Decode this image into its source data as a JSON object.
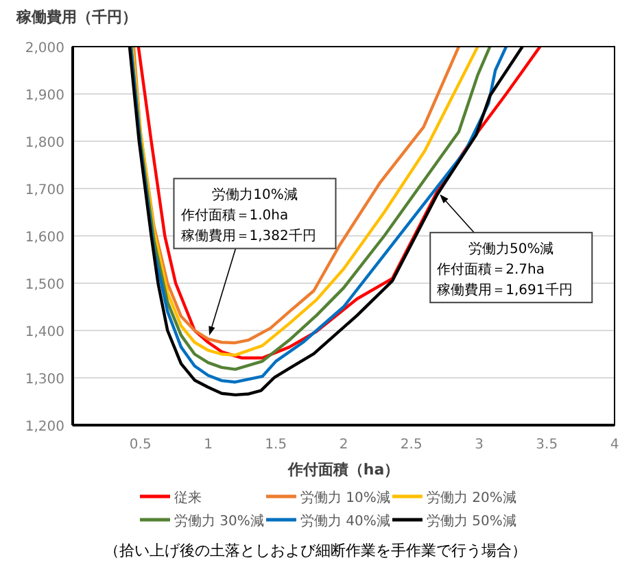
{
  "chart_data": {
    "type": "line",
    "xlabel": "作付面積（ha）",
    "ylabel": "稼働費用（千円）",
    "xlim": [
      0,
      4
    ],
    "ylim": [
      1200,
      2000
    ],
    "xticks": [
      0.5,
      1,
      1.5,
      2,
      2.5,
      3,
      3.5,
      4
    ],
    "yticks": [
      {
        "value": 1200,
        "label": "1,200"
      },
      {
        "value": 1300,
        "label": "1,300"
      },
      {
        "value": 1400,
        "label": "1,400"
      },
      {
        "value": 1500,
        "label": "1,500"
      },
      {
        "value": 1600,
        "label": "1,600"
      },
      {
        "value": 1700,
        "label": "1,700"
      },
      {
        "value": 1800,
        "label": "1,800"
      },
      {
        "value": 1900,
        "label": "1,900"
      },
      {
        "value": 2000,
        "label": "2,000"
      }
    ],
    "grid": "y",
    "legend": "bottom",
    "series": [
      {
        "name": "従来",
        "color": "#ff0000",
        "x": [
          0.485,
          0.58,
          0.68,
          0.76,
          0.9,
          1.0,
          1.1,
          1.25,
          1.4,
          1.6,
          1.8,
          2.1,
          2.36,
          2.69,
          2.94,
          3.2,
          3.45
        ],
        "values": [
          2000,
          1800,
          1600,
          1500,
          1400,
          1375,
          1355,
          1342,
          1342,
          1365,
          1398,
          1467,
          1510,
          1693,
          1800,
          1900,
          2000
        ]
      },
      {
        "name": "労働力 10%減",
        "color": "#ed7d31",
        "x": [
          0.45,
          0.5,
          0.6,
          0.7,
          0.8,
          0.9,
          1.0,
          1.1,
          1.2,
          1.3,
          1.46,
          1.6,
          1.78,
          1.97,
          2.27,
          2.59,
          2.85
        ],
        "values": [
          2000,
          1820,
          1620,
          1500,
          1430,
          1400,
          1382,
          1375,
          1374,
          1380,
          1405,
          1440,
          1484,
          1580,
          1713,
          1830,
          2000
        ]
      },
      {
        "name": "労働力 20%減",
        "color": "#ffc000",
        "x": [
          0.44,
          0.5,
          0.6,
          0.7,
          0.8,
          0.9,
          1.0,
          1.1,
          1.2,
          1.4,
          1.6,
          1.8,
          2.0,
          2.3,
          2.6,
          2.99
        ],
        "values": [
          2000,
          1820,
          1610,
          1480,
          1410,
          1375,
          1358,
          1350,
          1348,
          1368,
          1415,
          1465,
          1530,
          1650,
          1780,
          2000
        ]
      },
      {
        "name": "労働力 30%減",
        "color": "#548235",
        "x": [
          0.43,
          0.5,
          0.6,
          0.7,
          0.8,
          0.9,
          1.0,
          1.1,
          1.2,
          1.4,
          1.6,
          1.8,
          2.0,
          2.3,
          2.6,
          2.85,
          2.99,
          3.08
        ],
        "values": [
          2000,
          1800,
          1590,
          1460,
          1390,
          1350,
          1332,
          1322,
          1318,
          1335,
          1380,
          1432,
          1490,
          1600,
          1720,
          1820,
          1940,
          2000
        ]
      },
      {
        "name": "労働力 40%減",
        "color": "#0070c0",
        "x": [
          0.43,
          0.5,
          0.6,
          0.7,
          0.8,
          0.9,
          1.0,
          1.1,
          1.2,
          1.4,
          1.5,
          1.7,
          2.0,
          2.3,
          2.6,
          2.9,
          3.07,
          3.12,
          3.2
        ],
        "values": [
          2000,
          1790,
          1570,
          1440,
          1365,
          1325,
          1305,
          1294,
          1291,
          1303,
          1335,
          1375,
          1450,
          1560,
          1670,
          1780,
          1880,
          1950,
          2000
        ]
      },
      {
        "name": "労働力 50%減",
        "color": "#000000",
        "x": [
          0.42,
          0.49,
          0.58,
          0.63,
          0.7,
          0.8,
          0.9,
          1.0,
          1.1,
          1.2,
          1.3,
          1.39,
          1.49,
          1.6,
          1.78,
          2.1,
          2.36,
          2.69,
          2.98,
          3.08,
          3.32
        ],
        "values": [
          2000,
          1800,
          1600,
          1500,
          1400,
          1330,
          1295,
          1280,
          1267,
          1264,
          1266,
          1273,
          1301,
          1320,
          1351,
          1432,
          1505,
          1687,
          1814,
          1896,
          2000
        ]
      }
    ],
    "subtitle": "（拾い上げ後の土落としおよび細断作業を手作業で行う場合）",
    "annotations": [
      "労働力10%減",
      "作付面積＝1.0ha",
      {
        "text": "稼働費用＝1,382千円",
        "x": 1.0,
        "y": 1382
      },
      {
        "text": "労働力50%減",
        "x": 2.7,
        "y": 1691
      },
      "作付面積＝2.7ha",
      "稼働費用＝1,691千円"
    ]
  }
}
